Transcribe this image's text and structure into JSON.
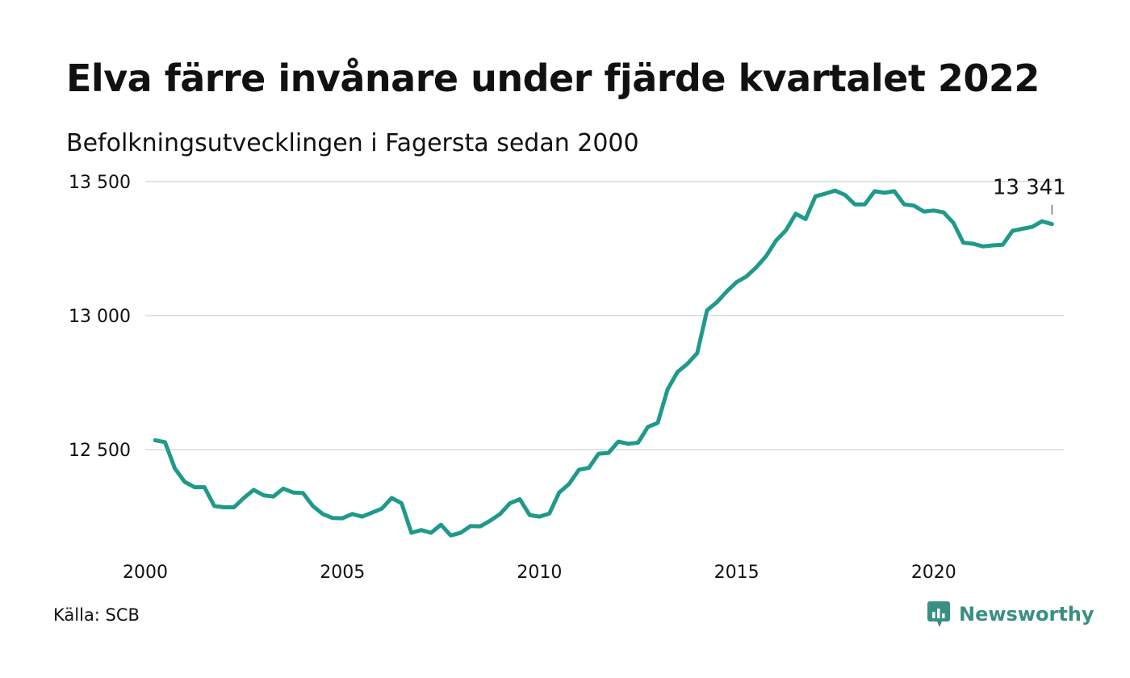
{
  "title": "Elva färre invånare under fjärde kvartalet 2022",
  "subtitle": "Befolkningsutvecklingen i Fagersta sedan 2000",
  "source": "Källa: SCB",
  "brand": {
    "name": "Newsworthy",
    "icon": "newsworthy-logo-icon"
  },
  "colors": {
    "line": "#1f9a8a",
    "grid": "#e2e2e2",
    "text": "#111111",
    "brand": "#3a8f83"
  },
  "chart_data": {
    "type": "line",
    "title": "Elva färre invånare under fjärde kvartalet 2022",
    "subtitle": "Befolkningsutvecklingen i Fagersta sedan 2000",
    "xlabel": "",
    "ylabel": "",
    "grid": "horizontal",
    "legend": "none",
    "xlim": [
      2000,
      2023.3
    ],
    "ylim": [
      12130,
      13560
    ],
    "x_ticks": [
      2000,
      2005,
      2010,
      2015,
      2020
    ],
    "y_ticks": [
      12500,
      13000,
      13500
    ],
    "y_tick_labels": [
      "12 500",
      "13 000",
      "13 500"
    ],
    "x_tick_labels": [
      "2000",
      "2005",
      "2010",
      "2015",
      "2020"
    ],
    "end_label": "13 341",
    "series": [
      {
        "x": [
          2000.25,
          2000.5,
          2000.75,
          2001.0,
          2001.25,
          2001.5,
          2001.75,
          2002.0,
          2002.25,
          2002.5,
          2002.75,
          2003.0,
          2003.25,
          2003.5,
          2003.75,
          2004.0,
          2004.25,
          2004.5,
          2004.75,
          2005.0,
          2005.25,
          2005.5,
          2005.75,
          2006.0,
          2006.25,
          2006.5,
          2006.75,
          2007.0,
          2007.25,
          2007.5,
          2007.75,
          2008.0,
          2008.25,
          2008.5,
          2008.75,
          2009.0,
          2009.25,
          2009.5,
          2009.75,
          2010.0,
          2010.25,
          2010.5,
          2010.75,
          2011.0,
          2011.25,
          2011.5,
          2011.75,
          2012.0,
          2012.25,
          2012.5,
          2012.75,
          2013.0,
          2013.25,
          2013.5,
          2013.75,
          2014.0,
          2014.25,
          2014.5,
          2014.75,
          2015.0,
          2015.25,
          2015.5,
          2015.75,
          2016.0,
          2016.25,
          2016.5,
          2016.75,
          2017.0,
          2017.25,
          2017.5,
          2017.75,
          2018.0,
          2018.25,
          2018.5,
          2018.75,
          2019.0,
          2019.25,
          2019.5,
          2019.75,
          2020.0,
          2020.25,
          2020.5,
          2020.75,
          2021.0,
          2021.25,
          2021.5,
          2021.75,
          2022.0,
          2022.25,
          2022.5,
          2022.75,
          2023.0
        ],
        "values": [
          12535,
          12528,
          12430,
          12380,
          12360,
          12360,
          12290,
          12285,
          12285,
          12320,
          12350,
          12330,
          12325,
          12355,
          12340,
          12338,
          12290,
          12260,
          12245,
          12244,
          12260,
          12250,
          12265,
          12280,
          12320,
          12300,
          12190,
          12200,
          12190,
          12220,
          12180,
          12190,
          12215,
          12214,
          12235,
          12260,
          12300,
          12315,
          12256,
          12250,
          12262,
          12340,
          12372,
          12425,
          12432,
          12485,
          12488,
          12530,
          12522,
          12526,
          12585,
          12600,
          12725,
          12790,
          12820,
          12860,
          13020,
          13050,
          13090,
          13125,
          13146,
          13180,
          13222,
          13280,
          13318,
          13380,
          13360,
          13445,
          13455,
          13466,
          13450,
          13415,
          13415,
          13464,
          13458,
          13464,
          13415,
          13410,
          13388,
          13392,
          13385,
          13346,
          13272,
          13268,
          13258,
          13262,
          13264,
          13316,
          13324,
          13331,
          13352,
          13341
        ]
      }
    ]
  }
}
